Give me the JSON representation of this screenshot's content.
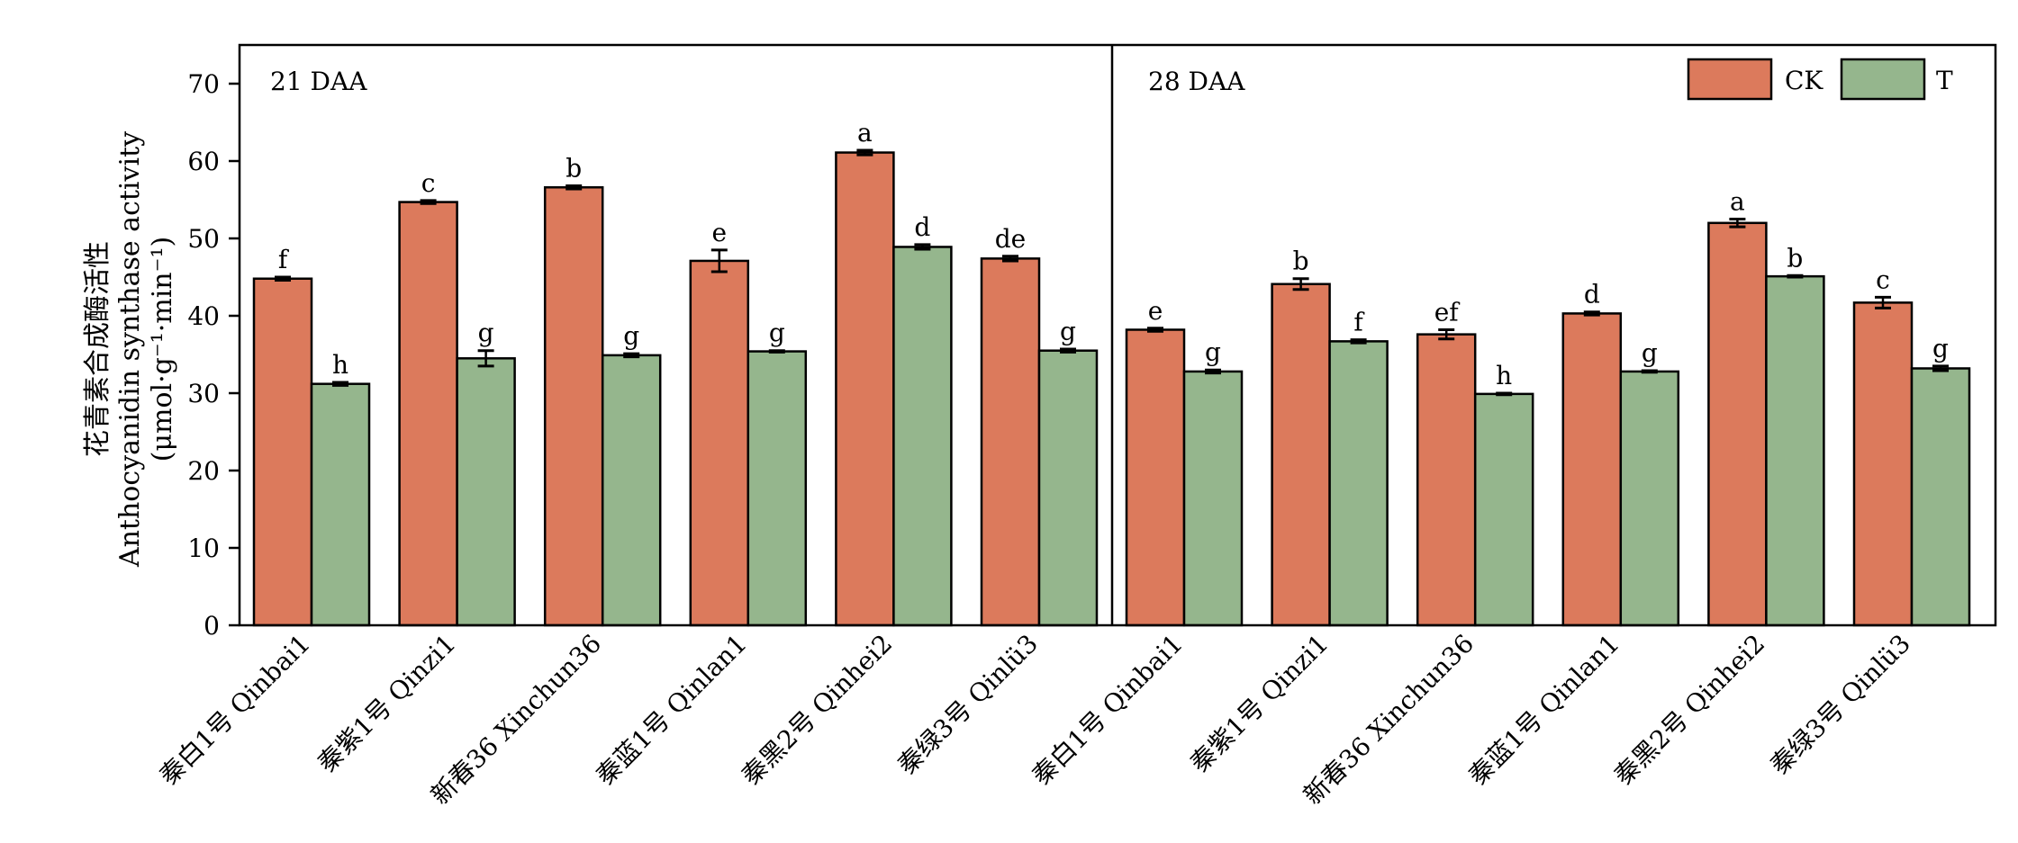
{
  "colors": {
    "ck": "#dc7a5c",
    "t": "#95b68d",
    "axis": "#000000"
  },
  "chart_data": {
    "type": "bar",
    "ylabel_cn": "花青素合成酶活性",
    "ylabel_en": "Anthocyanidin synthase activity",
    "ylabel_unit": "(μmol·g⁻¹·min⁻¹)",
    "ylim": [
      0,
      75
    ],
    "yticks": [
      "0",
      "10",
      "20",
      "30",
      "40",
      "50",
      "60",
      "70"
    ],
    "legend": {
      "placement": "top-right",
      "items": [
        "CK",
        "T"
      ]
    },
    "panels": [
      {
        "title": "21 DAA",
        "categories": [
          "秦白1号 Qinbai1",
          "秦紫1号 Qinzi1",
          "新春36 Xinchun36",
          "秦蓝1号 Qinlan1",
          "秦黑2号 Qinhei2",
          "秦绿3号 Qinlü3"
        ],
        "series": [
          {
            "name": "CK",
            "values": [
              44.8,
              54.7,
              56.6,
              47.1,
              61.1,
              47.4
            ],
            "errors": [
              0.2,
              0.2,
              0.2,
              1.4,
              0.3,
              0.3
            ],
            "letters": [
              "f",
              "c",
              "b",
              "e",
              "a",
              "de"
            ]
          },
          {
            "name": "T",
            "values": [
              31.2,
              34.5,
              34.9,
              35.4,
              48.9,
              35.5
            ],
            "errors": [
              0.2,
              1.0,
              0.2,
              0.1,
              0.3,
              0.2
            ],
            "letters": [
              "h",
              "g",
              "g",
              "g",
              "d",
              "g"
            ]
          }
        ]
      },
      {
        "title": "28 DAA",
        "categories": [
          "秦白1号 Qinbai1",
          "秦紫1号 Qinzi1",
          "新春36 Xinchun36",
          "秦蓝1号 Qinlan1",
          "秦黑2号 Qinhei2",
          "秦绿3号 Qinlü3"
        ],
        "series": [
          {
            "name": "CK",
            "values": [
              38.2,
              44.1,
              37.6,
              40.3,
              52.0,
              41.7
            ],
            "errors": [
              0.2,
              0.7,
              0.6,
              0.2,
              0.5,
              0.7
            ],
            "letters": [
              "e",
              "b",
              "ef",
              "d",
              "a",
              "c"
            ]
          },
          {
            "name": "T",
            "values": [
              32.8,
              36.7,
              29.9,
              32.8,
              45.1,
              33.2
            ],
            "errors": [
              0.2,
              0.2,
              0.1,
              0.1,
              0.1,
              0.3
            ],
            "letters": [
              "g",
              "f",
              "h",
              "g",
              "b",
              "g"
            ]
          }
        ]
      }
    ]
  }
}
